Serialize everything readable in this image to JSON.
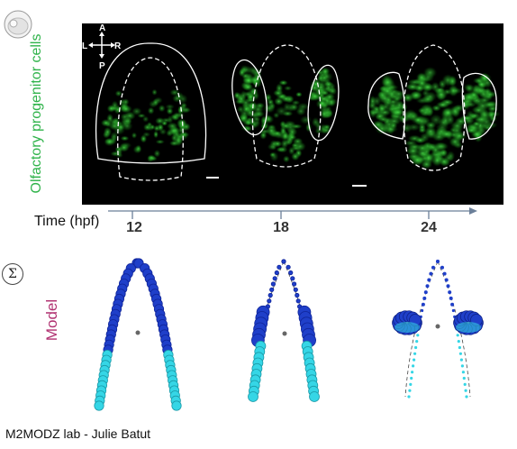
{
  "y_label": "Olfactory progenitor cells",
  "model_label": "Model",
  "time_label": "Time (hpf)",
  "timepoints": [
    "12",
    "18",
    "24"
  ],
  "compass": {
    "a": "A",
    "p": "P",
    "l": "L",
    "r": "R"
  },
  "footer": "M2MODZ lab - Julie Batut",
  "sigma_symbol": "Σ",
  "colors": {
    "fluor": "#3ad13a",
    "model_dark": "#1f3fc9",
    "model_light": "#35d6e6",
    "label_green": "#2fb34a",
    "label_model": "#b03070"
  }
}
